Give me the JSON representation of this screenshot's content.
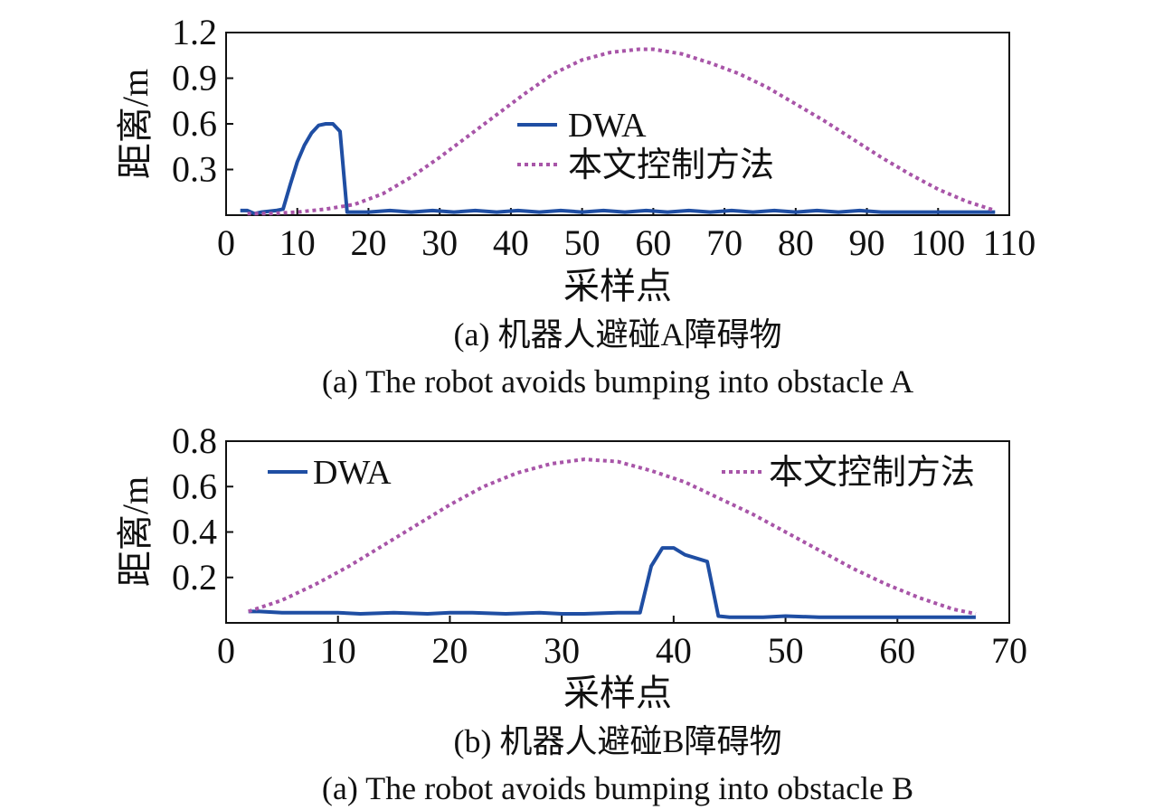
{
  "colors": {
    "dwa": "#1f4ea3",
    "proposed": "#a855a8",
    "axis": "#111111"
  },
  "chart_data": [
    {
      "type": "line",
      "ylabel": "距离/m",
      "xlabel": "采样点",
      "caption_cn": "(a) 机器人避碰A障碍物",
      "caption_en": "(a) The robot avoids bumping into obstacle A",
      "xlim": [
        0,
        110
      ],
      "ylim": [
        0,
        1.2
      ],
      "x_ticks": [
        0,
        10,
        20,
        30,
        40,
        50,
        60,
        70,
        80,
        90,
        100,
        110
      ],
      "y_ticks": [
        0.3,
        0.6,
        0.9,
        1.2
      ],
      "x_tick_labels": [
        "0",
        "10",
        "20",
        "30",
        "40",
        "50",
        "60",
        "70",
        "80",
        "90",
        "100",
        "110"
      ],
      "y_tick_labels": [
        "0.3",
        "0.6",
        "0.9",
        "1.2"
      ],
      "grid": false,
      "legend": "center",
      "series": [
        {
          "name": "DWA",
          "style": "solid",
          "x": [
            2,
            3,
            4,
            5,
            7,
            8,
            9,
            10,
            11,
            12,
            13,
            14,
            15,
            16,
            17,
            20,
            23,
            26,
            29,
            32,
            35,
            38,
            41,
            44,
            47,
            50,
            53,
            56,
            59,
            62,
            65,
            68,
            71,
            74,
            77,
            80,
            83,
            86,
            89,
            92,
            95,
            98,
            101,
            104,
            107,
            108
          ],
          "y": [
            0.03,
            0.03,
            0.01,
            0.02,
            0.03,
            0.04,
            0.2,
            0.35,
            0.46,
            0.54,
            0.59,
            0.6,
            0.6,
            0.55,
            0.02,
            0.02,
            0.03,
            0.02,
            0.03,
            0.02,
            0.03,
            0.02,
            0.03,
            0.02,
            0.03,
            0.02,
            0.03,
            0.02,
            0.03,
            0.02,
            0.03,
            0.02,
            0.03,
            0.02,
            0.03,
            0.02,
            0.03,
            0.02,
            0.03,
            0.02,
            0.02,
            0.02,
            0.02,
            0.02,
            0.02,
            0.02
          ]
        },
        {
          "name": "本文控制方法",
          "style": "dotted",
          "x": [
            3,
            6,
            10,
            14,
            18,
            22,
            26,
            30,
            34,
            38,
            42,
            46,
            50,
            54,
            58,
            60,
            64,
            68,
            72,
            76,
            80,
            84,
            88,
            92,
            96,
            100,
            104,
            108
          ],
          "y": [
            0.01,
            0.01,
            0.02,
            0.04,
            0.07,
            0.14,
            0.25,
            0.38,
            0.52,
            0.66,
            0.8,
            0.93,
            1.02,
            1.07,
            1.09,
            1.09,
            1.06,
            1.0,
            0.93,
            0.84,
            0.73,
            0.62,
            0.5,
            0.38,
            0.27,
            0.17,
            0.09,
            0.03
          ]
        }
      ]
    },
    {
      "type": "line",
      "ylabel": "距离/m",
      "xlabel": "采样点",
      "caption_cn": "(b) 机器人避碰B障碍物",
      "caption_en": "(a) The robot avoids bumping into obstacle B",
      "xlim": [
        0,
        70
      ],
      "ylim": [
        0,
        0.8
      ],
      "x_ticks": [
        0,
        10,
        20,
        30,
        40,
        50,
        60,
        70
      ],
      "y_ticks": [
        0.2,
        0.4,
        0.6,
        0.8
      ],
      "x_tick_labels": [
        "0",
        "10",
        "20",
        "30",
        "40",
        "50",
        "60",
        "70"
      ],
      "y_tick_labels": [
        "0.2",
        "0.4",
        "0.6",
        "0.8"
      ],
      "grid": false,
      "legend": "top",
      "series": [
        {
          "name": "DWA",
          "style": "solid",
          "x": [
            2,
            3,
            5,
            8,
            10,
            12,
            15,
            18,
            20,
            22,
            25,
            28,
            30,
            32,
            35,
            37,
            38,
            39,
            40,
            41,
            43,
            44,
            45,
            48,
            50,
            53,
            56,
            60,
            62,
            64,
            67
          ],
          "y": [
            0.05,
            0.05,
            0.045,
            0.045,
            0.045,
            0.04,
            0.045,
            0.04,
            0.045,
            0.045,
            0.04,
            0.045,
            0.04,
            0.04,
            0.045,
            0.045,
            0.25,
            0.33,
            0.33,
            0.3,
            0.27,
            0.03,
            0.025,
            0.025,
            0.03,
            0.025,
            0.025,
            0.025,
            0.025,
            0.025,
            0.025
          ]
        },
        {
          "name": "本文控制方法",
          "style": "dotted",
          "x": [
            2,
            5,
            8,
            11,
            14,
            17,
            20,
            23,
            26,
            29,
            32,
            35,
            38,
            41,
            44,
            47,
            50,
            53,
            56,
            59,
            62,
            65,
            67
          ],
          "y": [
            0.05,
            0.1,
            0.17,
            0.25,
            0.34,
            0.43,
            0.52,
            0.6,
            0.66,
            0.7,
            0.72,
            0.71,
            0.67,
            0.62,
            0.55,
            0.48,
            0.4,
            0.32,
            0.24,
            0.17,
            0.11,
            0.06,
            0.04
          ]
        }
      ]
    }
  ]
}
